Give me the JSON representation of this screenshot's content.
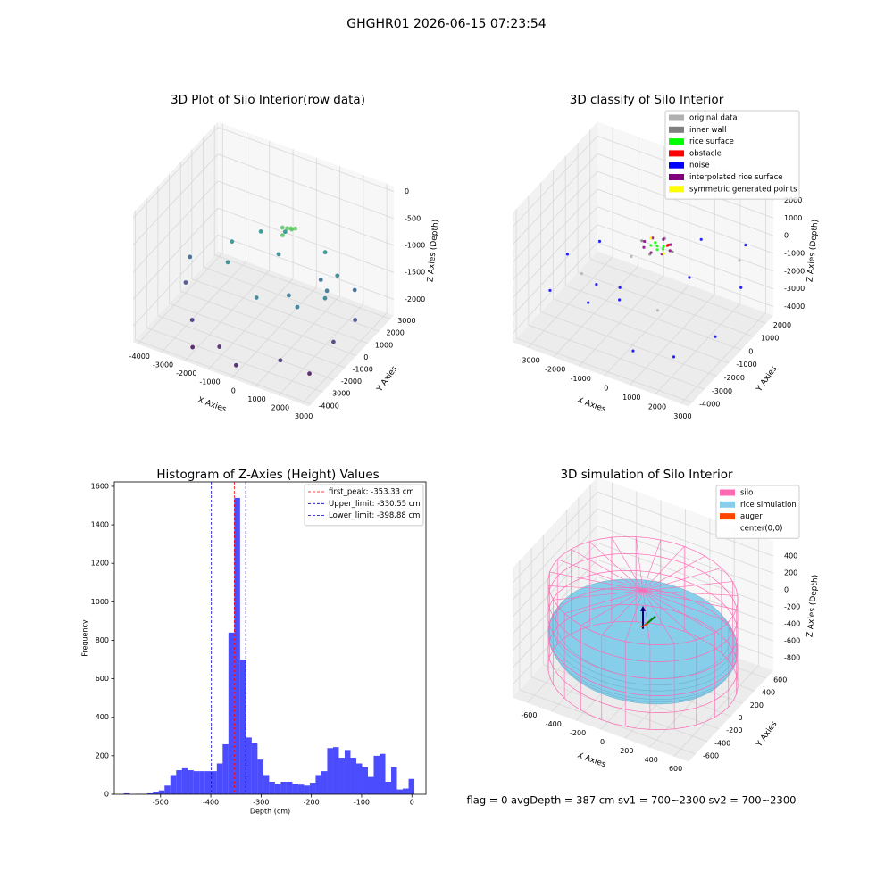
{
  "title": "GHGHR01 2026-06-15 07:23:54",
  "footer": "flag = 0     avgDepth = 387 cm  sv1 = 700~2300  sv2 = 700~2300",
  "chart_data": [
    {
      "type": "scatter3d",
      "title": "3D Plot of Silo Interior(row data)",
      "xlabel": "X Axies",
      "ylabel": "Y Axies",
      "zlabel": "Z Axies (Depth)",
      "xlim": [
        -4200,
        3300
      ],
      "ylim": [
        -4200,
        3300
      ],
      "zlim": [
        -2300,
        100
      ],
      "xticks": [
        -4000,
        -3000,
        -2000,
        -1000,
        0,
        1000,
        2000,
        3000
      ],
      "yticks": [
        -4000,
        -3000,
        -2000,
        -1000,
        0,
        1000,
        2000,
        3000
      ],
      "zticks": [
        -2000,
        -1500,
        -1000,
        -500,
        0
      ],
      "colormap": "viridis",
      "x": [
        200,
        400,
        300,
        100,
        500,
        0,
        -1500,
        -800,
        1000,
        2000,
        2200,
        1500,
        0,
        -1800,
        -2200,
        800,
        1800,
        -500,
        1200,
        2500,
        -3500,
        -2500,
        -3800,
        2800,
        3000,
        1500,
        -1000,
        -2000,
        0,
        2500
      ],
      "y": [
        300,
        200,
        500,
        100,
        400,
        300,
        1500,
        2200,
        2000,
        1000,
        -500,
        -1500,
        -2000,
        -800,
        400,
        -800,
        500,
        1000,
        1200,
        1500,
        -1000,
        -2500,
        0,
        -1000,
        500,
        -3000,
        -3200,
        -3500,
        -3800,
        -2500
      ],
      "z": [
        -500,
        -450,
        -550,
        -600,
        -480,
        -520,
        -1100,
        -1150,
        -1200,
        -1250,
        -1300,
        -1350,
        -1300,
        -1200,
        -1150,
        -1400,
        -1450,
        -1250,
        -1500,
        -1550,
        -1800,
        -2000,
        -1600,
        -1900,
        -1800,
        -2000,
        -2100,
        -2200,
        -2150,
        -2200
      ]
    },
    {
      "type": "scatter3d",
      "title": "3D classify of Silo Interior",
      "xlabel": "X Axies",
      "ylabel": "Y Axies",
      "zlabel": "Z Axies (Depth)",
      "xlim": [
        -3600,
        3300
      ],
      "ylim": [
        -4300,
        2600
      ],
      "zlim": [
        -4500,
        2800
      ],
      "xticks": [
        -3000,
        -2000,
        -1000,
        0,
        1000,
        2000,
        3000
      ],
      "yticks": [
        -4000,
        -3000,
        -2000,
        -1000,
        0,
        1000,
        2000
      ],
      "zticks": [
        -4000,
        -3000,
        -2000,
        -1000,
        0,
        1000,
        2000
      ],
      "legend": "upper right",
      "series": [
        {
          "name": "original data",
          "color": "#b0b0b0",
          "x": [
            -2000,
            500,
            2500,
            -1500
          ],
          "y": [
            -2000,
            -1000,
            1500,
            1000
          ],
          "z": [
            -1500,
            -3000,
            -1000,
            -2500
          ]
        },
        {
          "name": "inner wall",
          "color": "#808080",
          "x": [
            -600,
            600,
            0,
            0
          ],
          "y": [
            0,
            0,
            600,
            -600
          ],
          "z": [
            -400,
            -400,
            -400,
            -400
          ]
        },
        {
          "name": "rice surface",
          "color": "#00ff00",
          "x": [
            0,
            200,
            -150,
            100,
            -200,
            250
          ],
          "y": [
            0,
            100,
            150,
            -200,
            -100,
            -50
          ],
          "z": [
            -380,
            -380,
            -380,
            -380,
            -380,
            -380
          ]
        },
        {
          "name": "obstacle",
          "color": "#ff0000",
          "x": [
            300,
            320
          ],
          "y": [
            200,
            250
          ],
          "z": [
            -350,
            -340
          ]
        },
        {
          "name": "noise",
          "color": "#0000ff",
          "x": [
            -2800,
            -1500,
            2000,
            2800,
            1500,
            -2500,
            -1000,
            500,
            2500,
            -3000,
            1000,
            -500,
            3000,
            -2000
          ],
          "y": [
            -1500,
            -2500,
            -2800,
            1000,
            -500,
            500,
            -1000,
            -3000,
            2000,
            -2500,
            1500,
            -2000,
            -1500,
            -800
          ],
          "z": [
            -1200,
            -2500,
            -3500,
            -2000,
            -1000,
            -1800,
            -3200,
            -3800,
            -500,
            -2600,
            -600,
            -1500,
            -2800,
            -3000
          ]
        },
        {
          "name": "interpolated rice surface",
          "color": "#800080",
          "x": [
            500,
            354,
            0,
            -354,
            -500,
            -354,
            0,
            354
          ],
          "y": [
            0,
            354,
            500,
            354,
            0,
            -354,
            -500,
            -354
          ],
          "z": [
            -380,
            -380,
            -380,
            -380,
            -380,
            -380,
            -380,
            -380
          ]
        },
        {
          "name": "symmetric generated points",
          "color": "#ffff00",
          "x": [
            400,
            -400
          ],
          "y": [
            -300,
            300
          ],
          "z": [
            -370,
            -370
          ]
        }
      ]
    },
    {
      "type": "histogram",
      "title": "Histogram of Z-Axies (Height) Values",
      "xlabel": "Depth (cm)",
      "ylabel": "Frequency",
      "color": "#0000ff",
      "alpha": 0.7,
      "xlim": [
        -592,
        28
      ],
      "ylim": [
        0,
        1623
      ],
      "xticks": [
        -500,
        -400,
        -300,
        -200,
        -100,
        0
      ],
      "yticks": [
        0,
        200,
        400,
        600,
        800,
        1000,
        1200,
        1400,
        1600
      ],
      "bins": [
        -573,
        -561.44,
        -549.88,
        -538.32,
        -526.76,
        -515.2,
        -503.64,
        -492.08,
        -480.52,
        -468.96,
        -457.4,
        -445.84,
        -434.28,
        -422.72,
        -411.16,
        -399.6,
        -388.04,
        -376.48,
        -364.92,
        -353.36,
        -341.8,
        -330.24,
        -318.68,
        -307.12,
        -295.56,
        -284,
        -272.44,
        -260.88,
        -249.32,
        -237.76,
        -226.2,
        -214.64,
        -203.08,
        -191.52,
        -179.96,
        -168.4,
        -156.84,
        -145.28,
        -133.72,
        -122.16,
        -110.6,
        -99.04,
        -87.48,
        -75.92,
        -64.36,
        -52.8,
        -41.24,
        -29.68,
        -18.12,
        -6.56,
        5
      ],
      "counts": [
        5,
        0,
        2,
        2,
        5,
        10,
        20,
        45,
        100,
        125,
        135,
        125,
        120,
        120,
        120,
        120,
        160,
        260,
        840,
        1540,
        700,
        295,
        265,
        180,
        100,
        65,
        55,
        65,
        65,
        55,
        50,
        45,
        60,
        100,
        120,
        240,
        245,
        190,
        230,
        190,
        160,
        140,
        90,
        200,
        210,
        65,
        140,
        25,
        30,
        80
      ],
      "legend": "upper right",
      "vlines": [
        {
          "name": "first_peak: -353.33 cm",
          "value": -353.33,
          "color": "#ff0000"
        },
        {
          "name": "Upper_limit: -330.55 cm",
          "value": -330.55,
          "color": "#0000cc"
        },
        {
          "name": "Lower_limit: -398.88 cm",
          "value": -398.88,
          "color": "#0000cc"
        }
      ]
    },
    {
      "type": "surface3d",
      "title": "3D simulation of Silo Interior",
      "xlabel": "X Axies",
      "ylabel": "Y Axies",
      "zlabel": "Z Axies (Depth)",
      "xlim": [
        -720,
        720
      ],
      "ylim": [
        -720,
        720
      ],
      "zlim": [
        -950,
        575
      ],
      "xticks": [
        -600,
        -400,
        -200,
        0,
        200,
        400,
        600
      ],
      "yticks": [
        -600,
        -400,
        -200,
        0,
        200,
        400,
        600
      ],
      "zticks": [
        -800,
        -600,
        -400,
        -200,
        0,
        200,
        400
      ],
      "legend": "upper right",
      "series": [
        {
          "name": "silo",
          "color": "#ff69b4",
          "radius": 700,
          "z": [
            -850,
            150
          ]
        },
        {
          "name": "rice simulation",
          "color": "#87ceeb",
          "radius": 700,
          "z": [
            -600,
            -300
          ]
        },
        {
          "name": "auger",
          "color": "#ff4500"
        },
        {
          "name": "center(0,0)",
          "color": "none"
        }
      ]
    }
  ]
}
